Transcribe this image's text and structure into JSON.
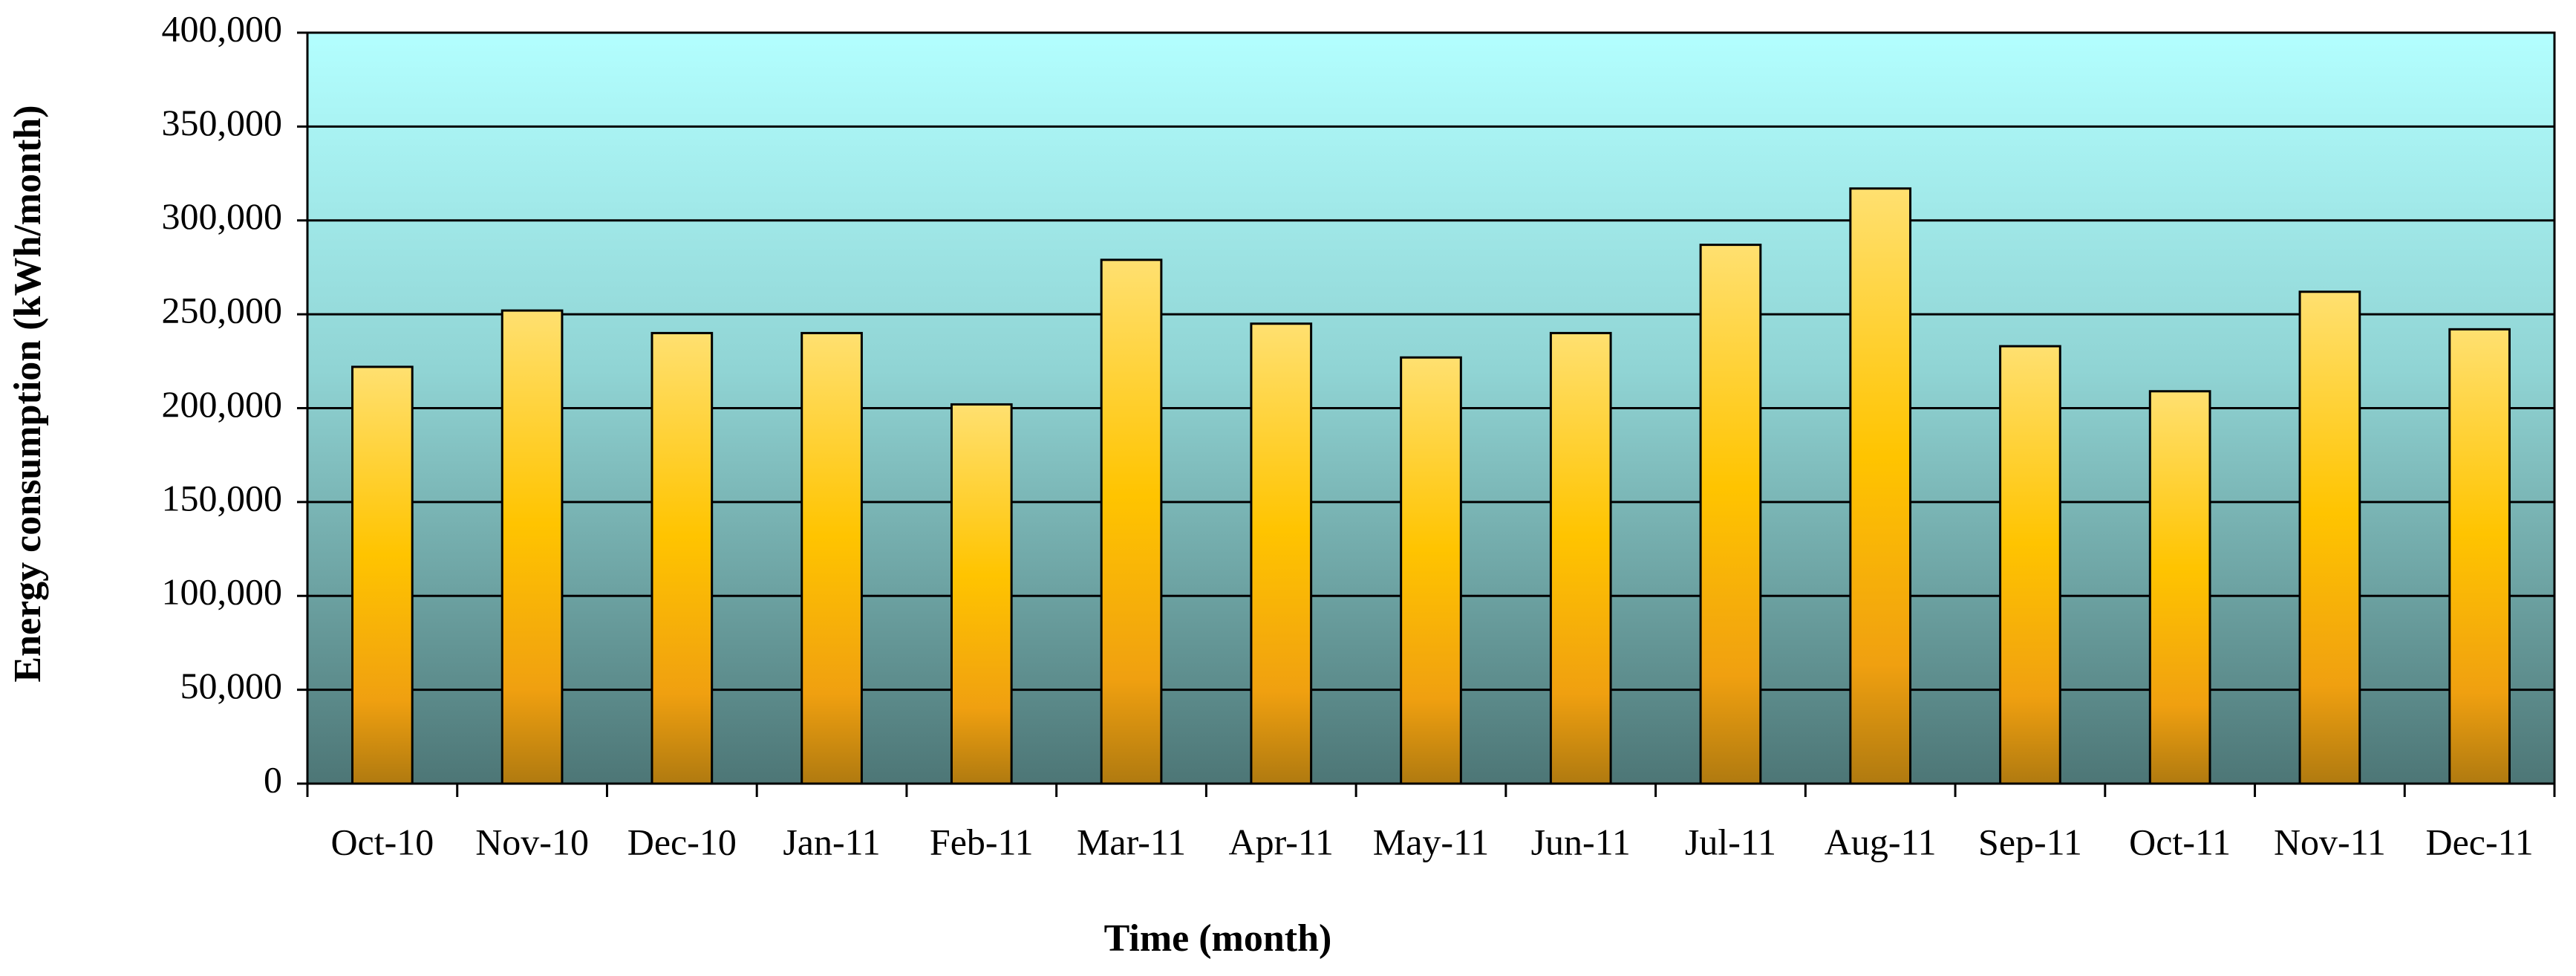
{
  "chart_data": {
    "type": "bar",
    "x_label": "Time (month)",
    "y_label": "Energy consumption (kWh/month)",
    "categories": [
      "Oct-10",
      "Nov-10",
      "Dec-10",
      "Jan-11",
      "Feb-11",
      "Mar-11",
      "Apr-11",
      "May-11",
      "Jun-11",
      "Jul-11",
      "Aug-11",
      "Sep-11",
      "Oct-11",
      "Nov-11",
      "Dec-11"
    ],
    "values": [
      222000,
      252000,
      240000,
      240000,
      202000,
      279000,
      245000,
      227000,
      240000,
      287000,
      317000,
      233000,
      209000,
      262000,
      242000
    ],
    "color": "#ffc000",
    "ylim": [
      0,
      400000
    ],
    "yticks": [
      0,
      {
        "value": 50000,
        "label": "50,000"
      },
      {
        "value": 100000,
        "label": "100,000"
      },
      {
        "value": 150000,
        "label": "150,000"
      },
      {
        "value": 200000,
        "label": "200,000"
      },
      {
        "value": 250000,
        "label": "250,000"
      },
      {
        "value": 300000,
        "label": "300,000"
      },
      {
        "value": 350000,
        "label": "350,000"
      },
      {
        "value": 400000,
        "label": "400,000"
      }
    ],
    "grid": true
  }
}
